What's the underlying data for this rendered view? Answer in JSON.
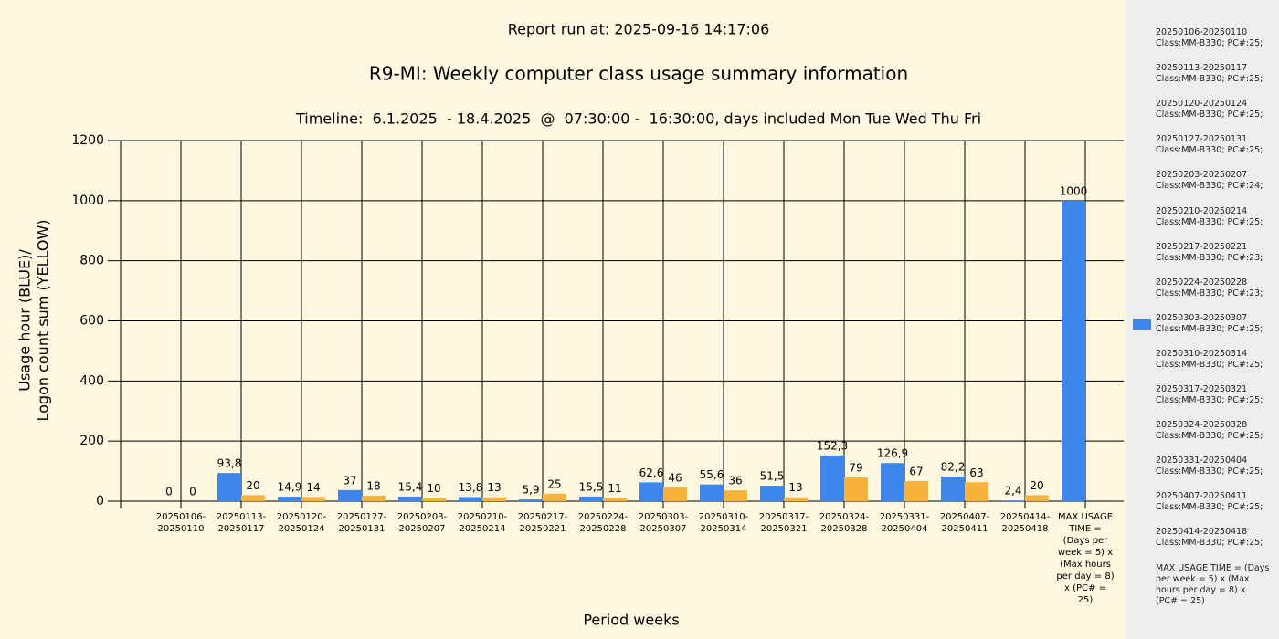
{
  "chart_data": {
    "type": "bar",
    "report_run": "Report run at: 2025-09-16 14:17:06",
    "title": "R9-MI: Weekly computer class usage summary information",
    "subtitle": "Timeline:  6.1.2025  - 18.4.2025  @  07:30:00 -  16:30:00, days included Mon Tue Wed Thu Fri",
    "y_label": [
      "Usage hour (BLUE)/",
      "Logon count sum (YELLOW)"
    ],
    "x_label": "Period weeks",
    "categories": [
      "20250106-20250110",
      "20250113-20250117",
      "20250120-20250124",
      "20250127-20250131",
      "20250203-20250207",
      "20250210-20250214",
      "20250217-20250221",
      "20250224-20250228",
      "20250303-20250307",
      "20250310-20250314",
      "20250317-20250321",
      "20250324-20250328",
      "20250331-20250404",
      "20250407-20250411",
      "20250414-20250418",
      "MAX USAGE TIME = (Days per week = 5) x (Max hours per day = 8) x (PC# = 25)"
    ],
    "series": [
      {
        "color": "#3d86ec",
        "values": [
          0,
          93.8,
          14.9,
          37,
          15.4,
          13.8,
          5.9,
          15.5,
          62.6,
          55.6,
          51.5,
          152.3,
          126.9,
          82.2,
          2.4,
          1000
        ],
        "value_labels": [
          "0",
          "93,8",
          "14,9",
          "37",
          "15,4",
          "13,8",
          "5,9",
          "15,5",
          "62,6",
          "55,6",
          "51,5",
          "152,3",
          "126,9",
          "82,2",
          "2,4",
          "1000"
        ]
      },
      {
        "color": "#f7b23b",
        "values": [
          0,
          20,
          14,
          18,
          10,
          13,
          25,
          11,
          46,
          36,
          13,
          79,
          67,
          63,
          20,
          null
        ],
        "value_labels": [
          "0",
          "20",
          "14",
          "18",
          "10",
          "13",
          "25",
          "11",
          "46",
          "36",
          "13",
          "79",
          "67",
          "63",
          "20",
          null
        ]
      }
    ],
    "ylim": [
      0,
      1200
    ],
    "yticks": [
      0,
      200,
      400,
      600,
      800,
      1000,
      1200
    ],
    "grid": true,
    "legend": [
      {
        "label": "20250106-20250110",
        "detail": "Class:MM-B330; PC#:25;"
      },
      {
        "label": "20250113-20250117",
        "detail": "Class:MM-B330; PC#:25;"
      },
      {
        "label": "20250120-20250124",
        "detail": "Class:MM-B330; PC#:25;"
      },
      {
        "label": "20250127-20250131",
        "detail": "Class:MM-B330; PC#:25;"
      },
      {
        "label": "20250203-20250207",
        "detail": "Class:MM-B330; PC#:24;"
      },
      {
        "label": "20250210-20250214",
        "detail": "Class:MM-B330; PC#:25;"
      },
      {
        "label": "20250217-20250221",
        "detail": "Class:MM-B330; PC#:23;"
      },
      {
        "label": "20250224-20250228",
        "detail": "Class:MM-B330; PC#:23;"
      },
      {
        "label": "20250303-20250307",
        "detail": "Class:MM-B330; PC#:25;",
        "color": "#3d86ec"
      },
      {
        "label": "20250310-20250314",
        "detail": "Class:MM-B330; PC#:25;"
      },
      {
        "label": "20250317-20250321",
        "detail": "Class:MM-B330; PC#:25;"
      },
      {
        "label": "20250324-20250328",
        "detail": "Class:MM-B330; PC#:25;"
      },
      {
        "label": "20250331-20250404",
        "detail": "Class:MM-B330; PC#:25;"
      },
      {
        "label": "20250407-20250411",
        "detail": "Class:MM-B330; PC#:25;"
      },
      {
        "label": "20250414-20250418",
        "detail": "Class:MM-B330; PC#:25;"
      },
      {
        "label": "MAX USAGE TIME =  (Days per week = 5) x (Max hours per day = 8) x (PC# = 25)"
      }
    ]
  }
}
